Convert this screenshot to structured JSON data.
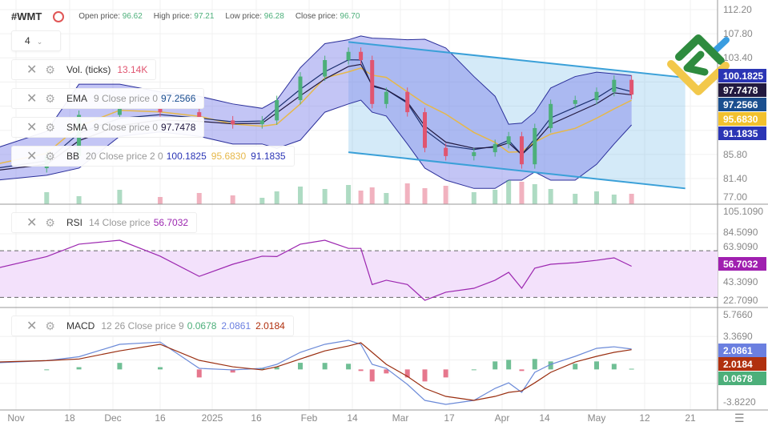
{
  "header": {
    "symbol": "#WMT",
    "open_label": "Open price:",
    "open": "96.62",
    "high_label": "High price:",
    "high": "97.21",
    "low_label": "Low price:",
    "low": "96.28",
    "close_label": "Close price:",
    "close": "96.70",
    "interval": "4"
  },
  "legends": {
    "vol": {
      "name": "Vol. (ticks)",
      "value": "13.14K"
    },
    "ema": {
      "name": "EMA",
      "params": "9 Close price 0",
      "value": "97.2566"
    },
    "sma": {
      "name": "SMA",
      "params": "9 Close price 0",
      "value": "97.7478"
    },
    "bb": {
      "name": "BB",
      "params": "20 Close price 2 0",
      "upper": "100.1825",
      "middle": "95.6830",
      "lower": "91.1835"
    },
    "rsi": {
      "name": "RSI",
      "params": "14 Close price",
      "value": "56.7032"
    },
    "macd": {
      "name": "MACD",
      "params": "12 26 Close price 9",
      "hist": "0.0678",
      "macd": "2.0861",
      "signal": "2.0184"
    }
  },
  "price_axis": [
    "112.20",
    "107.80",
    "103.40",
    "85.80",
    "81.40",
    "77.00"
  ],
  "rsi_axis": [
    "105.1090",
    "84.5090",
    "63.9090",
    "43.3090",
    "22.7090"
  ],
  "macd_axis": [
    "5.7660",
    "3.3690",
    "-3.8220"
  ],
  "badges": [
    {
      "text": "100.1825",
      "color": "#2b35b5"
    },
    {
      "text": "97.7478",
      "color": "#22193f"
    },
    {
      "text": "97.2566",
      "color": "#1b4f8f"
    },
    {
      "text": "95.6830",
      "color": "#f2c12e"
    },
    {
      "text": "91.1835",
      "color": "#2b35b5"
    },
    {
      "text": "56.7032",
      "color": "#a020b0"
    },
    {
      "text": "2.0861",
      "color": "#6b7fe0"
    },
    {
      "text": "2.0184",
      "color": "#b0300e"
    },
    {
      "text": "0.0678",
      "color": "#4caf7a"
    }
  ],
  "x_axis": [
    "Nov",
    "18",
    "Dec",
    "16",
    "2025",
    "16",
    "Feb",
    "14",
    "Mar",
    "17",
    "Apr",
    "14",
    "May",
    "12",
    "21"
  ],
  "colors": {
    "up": "#4caf7a",
    "down": "#e05570",
    "bb_fill": "#7b7fe8",
    "bb_line": "#2b2f9a",
    "sma20": "#e6b84a",
    "channel": "#3aa0d8",
    "rsi": "#9c27b0",
    "macd": "#6b8ad8",
    "signal": "#9a2e10"
  },
  "chart_data": {
    "type": "candlestick",
    "dates": [
      "2024-10-30",
      "2024-11-12",
      "2024-11-21",
      "2024-12-04",
      "2024-12-16",
      "2024-12-28",
      "2025-01-08",
      "2025-01-18",
      "2025-01-23",
      "2025-01-31",
      "2025-02-07",
      "2025-02-13",
      "2025-02-17",
      "2025-02-21",
      "2025-02-26",
      "2025-03-05",
      "2025-03-10",
      "2025-03-16",
      "2025-03-24",
      "2025-03-30",
      "2025-04-03",
      "2025-04-07",
      "2025-04-11",
      "2025-04-16",
      "2025-04-24",
      "2025-05-01",
      "2025-05-05",
      "2025-05-09"
    ],
    "close": [
      83.3,
      85.5,
      93,
      94.2,
      93.5,
      92,
      91.3,
      92,
      95.7,
      100,
      103,
      104.5,
      103,
      95,
      97.2,
      93.5,
      87,
      85.5,
      86.2,
      87.7,
      89.1,
      84,
      90.6,
      95,
      95.7,
      97.2,
      99.4,
      96.7
    ],
    "bb_upper": [
      87,
      90,
      98.6,
      98.6,
      97.2,
      96.4,
      95,
      94.2,
      95.7,
      101.6,
      106,
      106.7,
      107.4,
      107,
      106.9,
      106.7,
      106.8,
      105.2,
      100,
      96.4,
      91.3,
      91.5,
      93.5,
      97.9,
      100,
      100.8,
      100.5,
      100.18
    ],
    "bb_lower": [
      81.1,
      82,
      83.3,
      89.1,
      89.9,
      89.1,
      87.7,
      87.7,
      86.9,
      88.4,
      93.5,
      95,
      95.7,
      93.5,
      92.8,
      87.7,
      83.3,
      81.1,
      79.6,
      79.6,
      81.1,
      81.1,
      82.6,
      81.1,
      81.1,
      84,
      87.7,
      91.18
    ],
    "volume": [
      12,
      15,
      10,
      18,
      9,
      14,
      11,
      8,
      16,
      22,
      19,
      24,
      17,
      21,
      14,
      26,
      20,
      23,
      15,
      18,
      30,
      28,
      25,
      19,
      13,
      16,
      12,
      13
    ],
    "channel": {
      "upper": [
        [
          "2025-02-13",
          106.3
        ],
        [
          "2025-05-20",
          99.8
        ]
      ],
      "lower": [
        [
          "2025-02-13",
          86.2
        ],
        [
          "2025-05-20",
          79.6
        ]
      ]
    },
    "rsi": [
      55,
      65,
      75.6,
      79,
      65.3,
      48,
      58.4,
      65.3,
      65,
      75.6,
      79,
      72,
      72,
      41,
      44.7,
      41,
      27.5,
      34.4,
      37.8,
      44.7,
      51.5,
      37.8,
      55,
      58.4,
      59.8,
      61.8,
      63.9,
      56.7
    ],
    "rsi_levels": [
      70,
      30
    ],
    "macd": [
      0.68,
      0.9,
      1.3,
      2.57,
      2.8,
      0.11,
      -0.05,
      0.11,
      0.52,
      1.75,
      2.57,
      2.98,
      2.57,
      0.52,
      0.11,
      -1.53,
      -3.17,
      -3.58,
      -3.17,
      -1.94,
      -1.37,
      -2.35,
      -0.3,
      0.52,
      1.34,
      2.16,
      2.32,
      2.09
    ],
    "signal": [
      0.76,
      0.9,
      1.07,
      1.9,
      2.57,
      0.93,
      0.27,
      -0.05,
      0.27,
      1.07,
      1.9,
      2.4,
      2.73,
      1.75,
      0.52,
      -0.71,
      -1.94,
      -2.76,
      -3.17,
      -2.76,
      -2.35,
      -2.19,
      -1.37,
      -0.3,
      0.76,
      1.34,
      1.75,
      2.02
    ]
  }
}
